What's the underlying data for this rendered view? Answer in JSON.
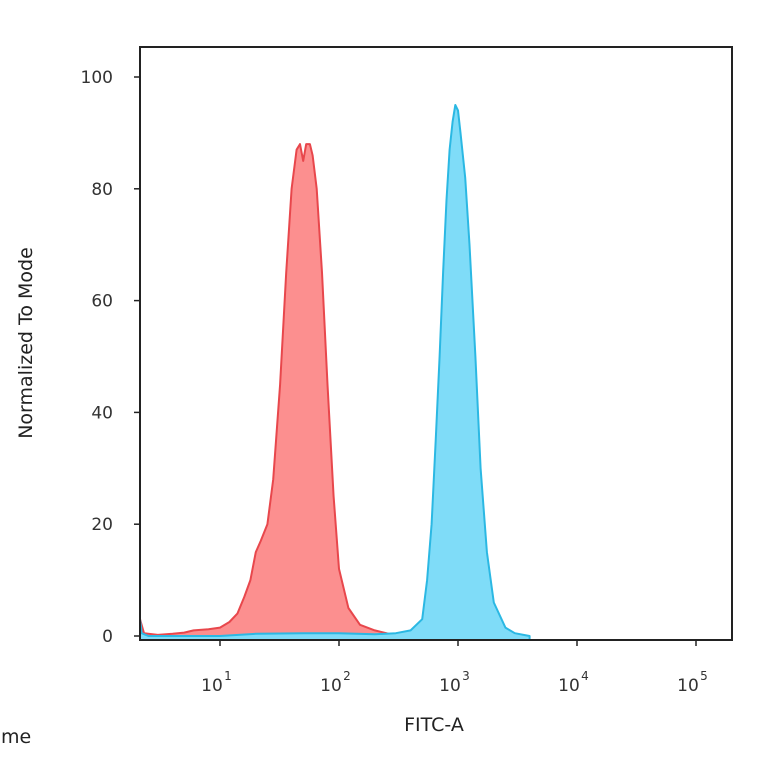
{
  "chart_data": {
    "type": "area",
    "xlabel": "FITC-A",
    "ylabel": "Normalized To Mode",
    "x_scale": "log",
    "xlim": [
      2,
      200000
    ],
    "ylim": [
      0,
      100
    ],
    "grid": false,
    "y_ticks": [
      0,
      20,
      40,
      60,
      80,
      100
    ],
    "x_ticks": [
      {
        "value": 10,
        "base": "10",
        "exp": "1"
      },
      {
        "value": 100,
        "base": "10",
        "exp": "2"
      },
      {
        "value": 1000,
        "base": "10",
        "exp": "3"
      },
      {
        "value": 10000,
        "base": "10",
        "exp": "4"
      },
      {
        "value": 100000,
        "base": "10",
        "exp": "5"
      }
    ],
    "series": [
      {
        "color": "#e8474c",
        "fill": "#fc8f8f",
        "points": [
          [
            2,
            8
          ],
          [
            2.1,
            3
          ],
          [
            2.3,
            0.5
          ],
          [
            3,
            0.2
          ],
          [
            4,
            0.4
          ],
          [
            5,
            0.6
          ],
          [
            6,
            1
          ],
          [
            8,
            1.2
          ],
          [
            10,
            1.5
          ],
          [
            12,
            2.5
          ],
          [
            14,
            4
          ],
          [
            16,
            7
          ],
          [
            18,
            10
          ],
          [
            20,
            15
          ],
          [
            22,
            17
          ],
          [
            25,
            20
          ],
          [
            28,
            28
          ],
          [
            32,
            45
          ],
          [
            36,
            65
          ],
          [
            40,
            80
          ],
          [
            44,
            87
          ],
          [
            47,
            88
          ],
          [
            50,
            85
          ],
          [
            53,
            88
          ],
          [
            57,
            88
          ],
          [
            60,
            86
          ],
          [
            65,
            80
          ],
          [
            72,
            65
          ],
          [
            80,
            45
          ],
          [
            90,
            25
          ],
          [
            100,
            12
          ],
          [
            120,
            5
          ],
          [
            150,
            2
          ],
          [
            200,
            1
          ],
          [
            250,
            0.5
          ],
          [
            300,
            0
          ]
        ]
      },
      {
        "color": "#2bb8e3",
        "fill": "#7fdcf8",
        "points": [
          [
            2,
            3
          ],
          [
            2.2,
            0.5
          ],
          [
            2.5,
            0
          ],
          [
            10,
            0
          ],
          [
            20,
            0.4
          ],
          [
            50,
            0.5
          ],
          [
            100,
            0.5
          ],
          [
            200,
            0.3
          ],
          [
            300,
            0.5
          ],
          [
            400,
            1
          ],
          [
            500,
            3
          ],
          [
            550,
            10
          ],
          [
            600,
            20
          ],
          [
            650,
            35
          ],
          [
            700,
            50
          ],
          [
            750,
            65
          ],
          [
            800,
            78
          ],
          [
            850,
            87
          ],
          [
            900,
            92
          ],
          [
            950,
            95
          ],
          [
            1000,
            94
          ],
          [
            1050,
            90
          ],
          [
            1150,
            82
          ],
          [
            1250,
            70
          ],
          [
            1400,
            50
          ],
          [
            1550,
            30
          ],
          [
            1750,
            15
          ],
          [
            2000,
            6
          ],
          [
            2500,
            1.5
          ],
          [
            3000,
            0.5
          ],
          [
            4000,
            0
          ]
        ]
      }
    ]
  },
  "page": {
    "clipped_text_left": "me",
    "clipped_text_bottom": "FITC-A"
  }
}
